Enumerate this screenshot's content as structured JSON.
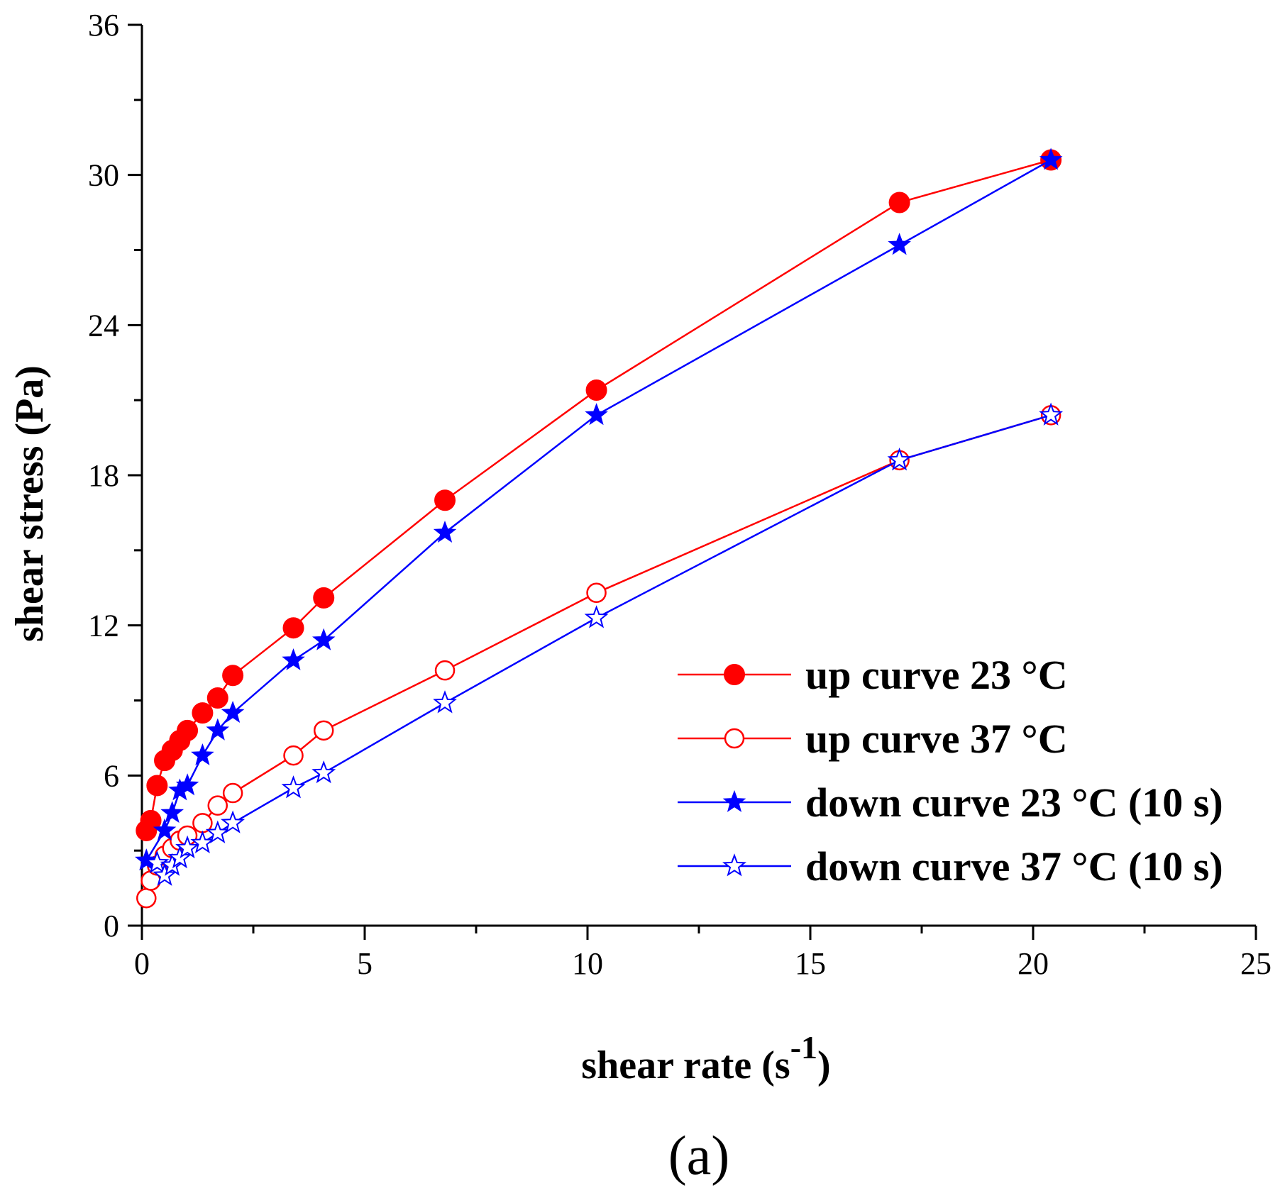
{
  "chart_data": {
    "type": "line",
    "title": "",
    "panel_label": "(a)",
    "xlabel": "shear rate (s",
    "xlabel_sup": "-1",
    "xlabel_end": ")",
    "ylabel": "shear stress (Pa)",
    "xlim": [
      0,
      25
    ],
    "ylim": [
      0,
      36
    ],
    "xticks": [
      0,
      5,
      10,
      15,
      20,
      25
    ],
    "yticks": [
      0,
      6,
      12,
      18,
      24,
      30,
      36
    ],
    "grid": false,
    "legend_position": "lower-right",
    "series": [
      {
        "name": "up curve 23 °C",
        "color": "#ff0000",
        "marker": "filled-circle",
        "x": [
          0.1,
          0.2,
          0.34,
          0.51,
          0.68,
          0.85,
          1.02,
          1.36,
          1.7,
          2.04,
          3.4,
          4.08,
          6.8,
          10.2,
          17.0,
          20.4
        ],
        "y": [
          3.8,
          4.2,
          5.6,
          6.6,
          7.0,
          7.4,
          7.8,
          8.5,
          9.1,
          10.0,
          11.9,
          13.1,
          17.0,
          21.4,
          28.9,
          30.6
        ]
      },
      {
        "name": "up curve 37 °C",
        "color": "#ff0000",
        "marker": "open-circle",
        "x": [
          0.1,
          0.2,
          0.34,
          0.51,
          0.68,
          0.85,
          1.02,
          1.36,
          1.7,
          2.04,
          3.4,
          4.08,
          6.8,
          10.2,
          17.0,
          20.4
        ],
        "y": [
          1.1,
          1.8,
          2.4,
          2.8,
          3.1,
          3.4,
          3.6,
          4.1,
          4.8,
          5.3,
          6.8,
          7.8,
          10.2,
          13.3,
          18.6,
          20.4
        ]
      },
      {
        "name": "down curve 23 °C (10 s)",
        "color": "#0000ff",
        "marker": "filled-star",
        "x": [
          0.1,
          0.51,
          0.68,
          0.85,
          1.02,
          1.36,
          1.7,
          2.04,
          3.4,
          4.08,
          6.8,
          10.2,
          17.0,
          20.4
        ],
        "y": [
          2.6,
          3.8,
          4.5,
          5.4,
          5.6,
          6.8,
          7.8,
          8.5,
          10.6,
          11.4,
          15.7,
          20.4,
          27.2,
          30.6
        ]
      },
      {
        "name": "down curve 37 °C (10 s)",
        "color": "#0000ff",
        "marker": "open-star",
        "x": [
          0.34,
          0.51,
          0.68,
          0.85,
          1.02,
          1.36,
          1.7,
          2.04,
          3.4,
          4.08,
          6.8,
          10.2,
          17.0,
          20.4
        ],
        "y": [
          2.5,
          2.0,
          2.4,
          2.7,
          3.1,
          3.3,
          3.7,
          4.1,
          5.5,
          6.1,
          8.9,
          12.3,
          18.6,
          20.4
        ]
      }
    ]
  }
}
